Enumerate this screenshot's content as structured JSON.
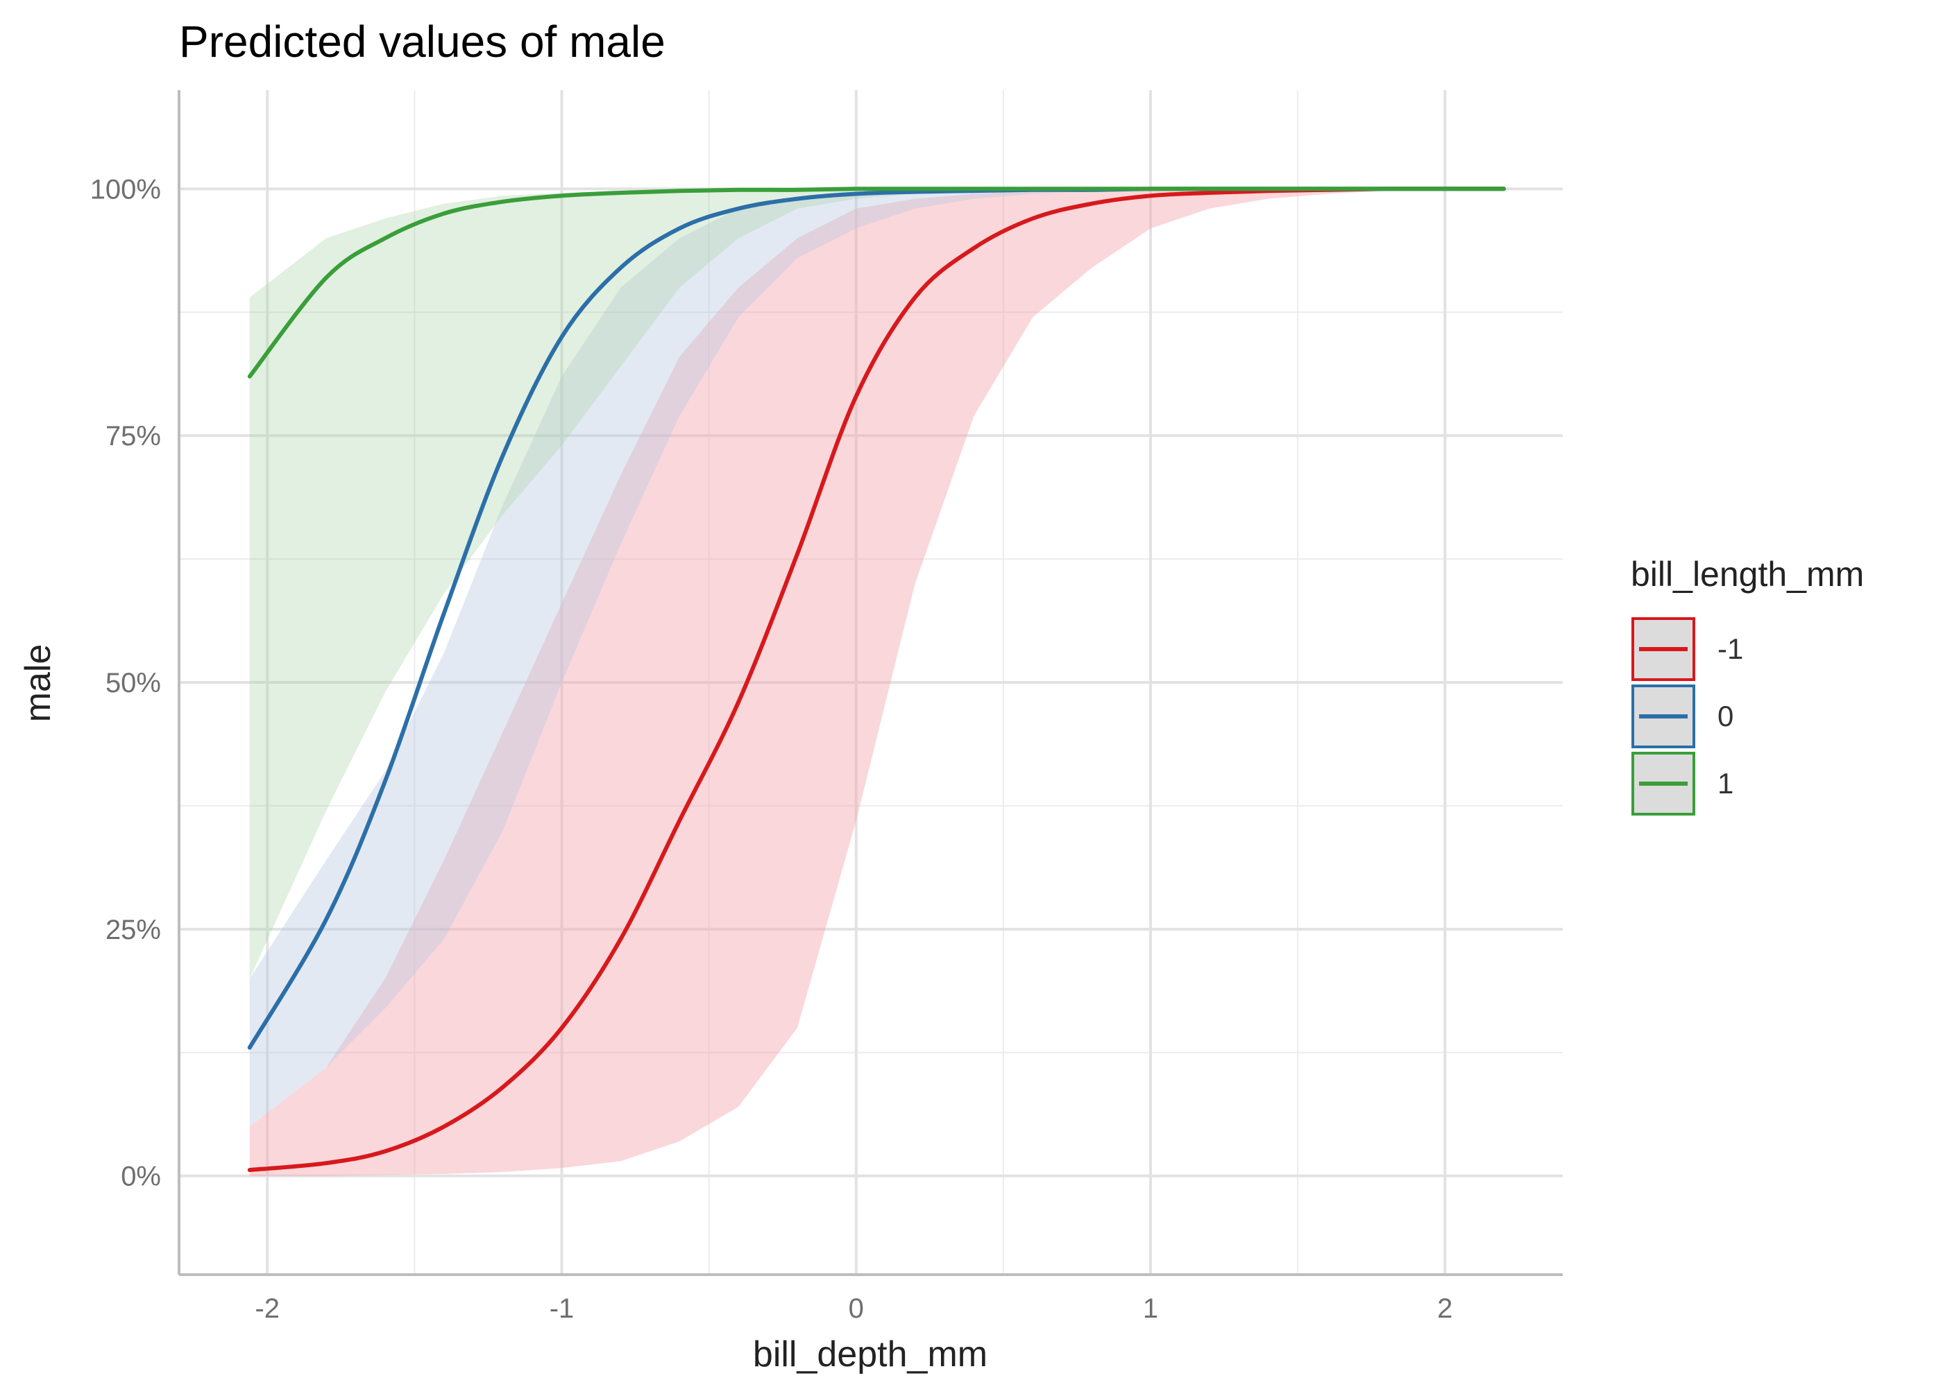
{
  "chart_data": {
    "type": "line",
    "title": "Predicted values of male",
    "xlabel": "bill_depth_mm",
    "ylabel": "male",
    "xlim": [
      -2.3,
      2.4
    ],
    "ylim": [
      -0.1,
      1.1
    ],
    "x_ticks": [
      {
        "value": -2,
        "label": "-2"
      },
      {
        "value": -1,
        "label": "-1"
      },
      {
        "value": 0,
        "label": "0"
      },
      {
        "value": 1,
        "label": "1"
      },
      {
        "value": 2,
        "label": "2"
      }
    ],
    "y_ticks": [
      {
        "value": 0,
        "label": "0%"
      },
      {
        "value": 0.25,
        "label": "25%"
      },
      {
        "value": 0.5,
        "label": "50%"
      },
      {
        "value": 0.75,
        "label": "75%"
      },
      {
        "value": 1,
        "label": "100%"
      }
    ],
    "grid": true,
    "legend": {
      "title": "bill_length_mm",
      "position": "right"
    },
    "x": [
      -2.06,
      -1.8,
      -1.6,
      -1.4,
      -1.2,
      -1.0,
      -0.8,
      -0.6,
      -0.4,
      -0.2,
      0.0,
      0.2,
      0.4,
      0.6,
      0.8,
      1.0,
      1.2,
      1.4,
      1.6,
      1.8,
      2.0,
      2.2
    ],
    "series": [
      {
        "name": "-1",
        "color": "#d7191c",
        "fill": "#f4a6b0",
        "fill_opacity": 0.45,
        "values": [
          0.006,
          0.013,
          0.025,
          0.05,
          0.09,
          0.15,
          0.24,
          0.36,
          0.48,
          0.63,
          0.79,
          0.89,
          0.94,
          0.97,
          0.985,
          0.993,
          0.996,
          0.998,
          0.999,
          1.0,
          1.0,
          1.0
        ],
        "lower": [
          0.0,
          0.0,
          0.001,
          0.002,
          0.004,
          0.008,
          0.015,
          0.035,
          0.07,
          0.15,
          0.36,
          0.6,
          0.77,
          0.87,
          0.92,
          0.96,
          0.98,
          0.99,
          0.995,
          0.998,
          0.999,
          0.999
        ],
        "upper": [
          0.05,
          0.11,
          0.2,
          0.32,
          0.45,
          0.58,
          0.71,
          0.83,
          0.9,
          0.95,
          0.98,
          0.99,
          0.995,
          0.998,
          0.999,
          1.0,
          1.0,
          1.0,
          1.0,
          1.0,
          1.0,
          1.0
        ]
      },
      {
        "name": "0",
        "color": "#2c6fa8",
        "fill": "#b8c9e0",
        "fill_opacity": 0.4,
        "values": [
          0.13,
          0.26,
          0.4,
          0.57,
          0.73,
          0.85,
          0.92,
          0.96,
          0.98,
          0.99,
          0.995,
          0.997,
          0.998,
          0.999,
          0.999,
          1.0,
          1.0,
          1.0,
          1.0,
          1.0,
          1.0,
          1.0
        ],
        "lower": [
          0.05,
          0.11,
          0.17,
          0.24,
          0.35,
          0.5,
          0.64,
          0.77,
          0.87,
          0.93,
          0.96,
          0.98,
          0.99,
          0.995,
          0.998,
          0.999,
          0.999,
          1.0,
          1.0,
          1.0,
          1.0,
          1.0
        ],
        "upper": [
          0.2,
          0.32,
          0.41,
          0.53,
          0.68,
          0.81,
          0.9,
          0.95,
          0.98,
          0.99,
          0.995,
          0.998,
          0.999,
          1.0,
          1.0,
          1.0,
          1.0,
          1.0,
          1.0,
          1.0,
          1.0,
          1.0
        ]
      },
      {
        "name": "1",
        "color": "#3a9e3a",
        "fill": "#a8d5a8",
        "fill_opacity": 0.35,
        "values": [
          0.81,
          0.91,
          0.95,
          0.975,
          0.987,
          0.993,
          0.996,
          0.998,
          0.999,
          0.999,
          1.0,
          1.0,
          1.0,
          1.0,
          1.0,
          1.0,
          1.0,
          1.0,
          1.0,
          1.0,
          1.0,
          1.0
        ],
        "lower": [
          0.2,
          0.37,
          0.49,
          0.59,
          0.67,
          0.74,
          0.82,
          0.9,
          0.95,
          0.98,
          0.99,
          0.995,
          0.998,
          0.999,
          1.0,
          1.0,
          1.0,
          1.0,
          1.0,
          1.0,
          1.0,
          1.0
        ],
        "upper": [
          0.89,
          0.95,
          0.97,
          0.985,
          0.993,
          0.996,
          0.998,
          0.999,
          1.0,
          1.0,
          1.0,
          1.0,
          1.0,
          1.0,
          1.0,
          1.0,
          1.0,
          1.0,
          1.0,
          1.0,
          1.0,
          1.0
        ]
      }
    ]
  }
}
